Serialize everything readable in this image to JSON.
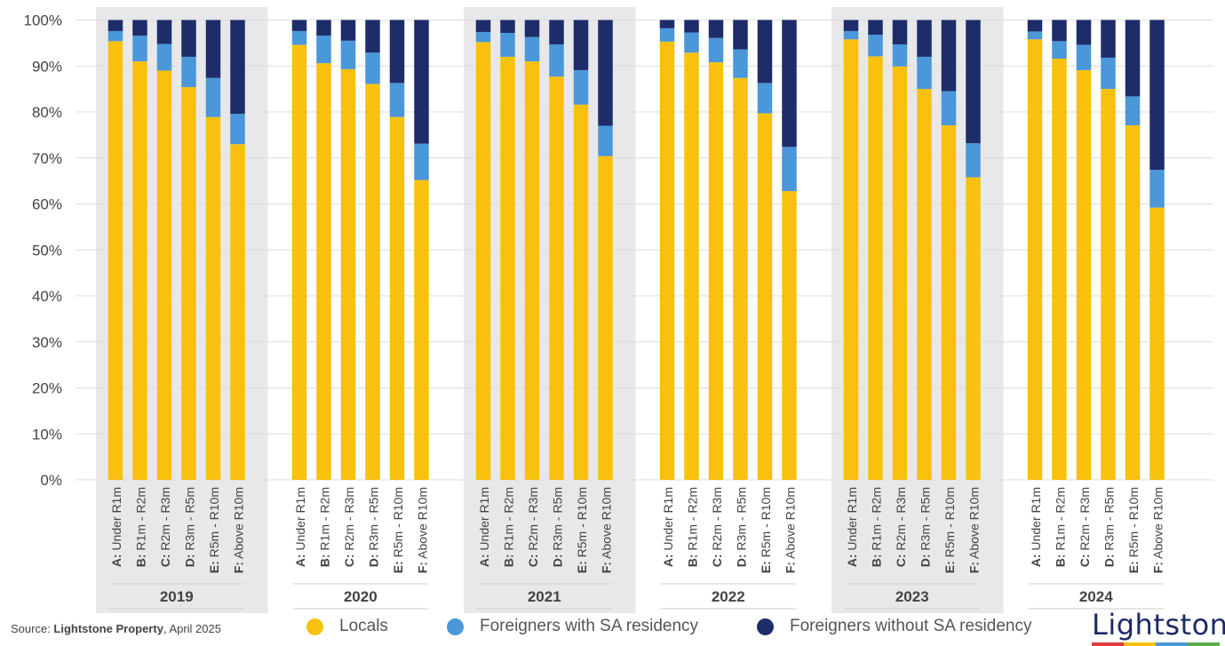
{
  "chart_data": {
    "type": "bar",
    "stacked": true,
    "normalized": true,
    "y_ticks": [
      "0%",
      "10%",
      "20%",
      "30%",
      "40%",
      "50%",
      "60%",
      "70%",
      "80%",
      "90%",
      "100%"
    ],
    "ylim": [
      0,
      100
    ],
    "grid": true,
    "groups": [
      "2019",
      "2020",
      "2021",
      "2022",
      "2023",
      "2024"
    ],
    "shaded_groups": [
      "2019",
      "2021",
      "2023"
    ],
    "categories": [
      {
        "prefix": "A:",
        "label": " Under R1m"
      },
      {
        "prefix": "B:",
        "label": " R1m - R2m"
      },
      {
        "prefix": "C:",
        "label": " R2m - R3m"
      },
      {
        "prefix": "D:",
        "label": " R3m - R5m"
      },
      {
        "prefix": "E:",
        "label": " R5m - R10m"
      },
      {
        "prefix": "F:",
        "label": " Above R10m"
      }
    ],
    "series": [
      {
        "name": "Locals",
        "color": "#F9C10E",
        "values": [
          [
            95.4,
            91.0,
            89.0,
            85.4,
            78.9,
            73.0
          ],
          [
            94.6,
            90.6,
            89.3,
            86.1,
            78.9,
            65.2
          ],
          [
            95.2,
            92.0,
            91.0,
            87.7,
            81.6,
            70.4
          ],
          [
            95.3,
            92.9,
            90.8,
            87.4,
            79.7,
            62.8
          ],
          [
            95.8,
            92.1,
            89.9,
            85.0,
            77.1,
            65.8
          ],
          [
            95.8,
            91.6,
            89.1,
            85.0,
            77.1,
            59.2
          ]
        ]
      },
      {
        "name": "Foreigners with SA residency",
        "color": "#4A97DA",
        "values": [
          [
            2.2,
            5.6,
            5.8,
            6.6,
            8.5,
            6.6
          ],
          [
            3.0,
            6.0,
            6.2,
            6.8,
            7.4,
            7.9
          ],
          [
            2.2,
            5.2,
            5.3,
            7.0,
            7.5,
            6.6
          ],
          [
            2.9,
            4.4,
            5.3,
            6.2,
            6.6,
            9.6
          ],
          [
            1.8,
            4.7,
            4.8,
            7.0,
            7.4,
            7.4
          ],
          [
            1.7,
            3.8,
            5.5,
            6.8,
            6.3,
            8.2
          ]
        ]
      },
      {
        "name": "Foreigners without SA residency",
        "color": "#1E2C6A",
        "values": [
          [
            2.4,
            3.4,
            5.2,
            8.0,
            12.6,
            20.4
          ],
          [
            2.4,
            3.4,
            4.5,
            7.1,
            13.7,
            26.9
          ],
          [
            2.6,
            2.8,
            3.7,
            5.3,
            10.9,
            23.0
          ],
          [
            1.8,
            2.7,
            3.9,
            6.4,
            13.7,
            27.6
          ],
          [
            2.4,
            3.2,
            5.3,
            8.0,
            15.5,
            26.8
          ],
          [
            2.5,
            4.6,
            5.4,
            8.2,
            16.6,
            32.6
          ]
        ]
      }
    ]
  },
  "footer": {
    "source_prefix": "Source: ",
    "source_bold": "Lightstone Property",
    "source_suffix": ", April 2025"
  },
  "legend": [
    {
      "label": "Locals",
      "color": "#F9C10E"
    },
    {
      "label": "Foreigners with SA residency",
      "color": "#4A97DA"
    },
    {
      "label": "Foreigners without SA residency",
      "color": "#1E2C6A"
    }
  ],
  "logo": {
    "text": "Lightstone",
    "bar_colors": [
      "#E03A3E",
      "#F9C10E",
      "#4A97DA",
      "#5DAE4B"
    ]
  }
}
